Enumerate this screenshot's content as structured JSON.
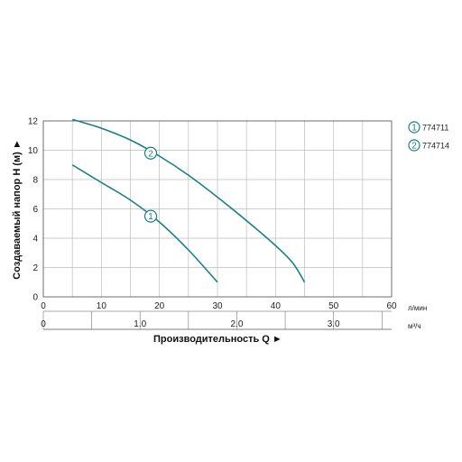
{
  "chart_data": {
    "type": "line",
    "xlabel": "Производительность Q ►",
    "ylabel": "Создаваемый напор H (м) ►",
    "x_unit": "л/мин",
    "x2_unit": "м³/ч",
    "xlim": [
      0,
      60
    ],
    "ylim": [
      0,
      12
    ],
    "x_ticks": [
      0,
      10,
      20,
      30,
      40,
      50,
      60
    ],
    "x2_ticks": [
      "0",
      "1.0",
      "2.0",
      "3.0"
    ],
    "x2_tick_values": [
      0,
      1.0,
      2.0,
      3.0
    ],
    "y_ticks": [
      0,
      2,
      4,
      6,
      8,
      10,
      12
    ],
    "grid": true,
    "legend_position": "right",
    "line_color": "#1a7f86",
    "series": [
      {
        "name": "774711",
        "marker": "1",
        "marker_at": [
          18.5,
          5.5
        ],
        "x": [
          5,
          10,
          15,
          20,
          25,
          30
        ],
        "y": [
          9.0,
          7.8,
          6.6,
          5.1,
          3.2,
          1.0
        ]
      },
      {
        "name": "774714",
        "marker": "2",
        "marker_at": [
          18.5,
          9.8
        ],
        "x": [
          5,
          10,
          15,
          20,
          25,
          30,
          35,
          40,
          43,
          45
        ],
        "y": [
          12.1,
          11.5,
          10.7,
          9.6,
          8.3,
          6.8,
          5.2,
          3.5,
          2.3,
          1.0
        ]
      }
    ],
    "legend": [
      {
        "marker": "1",
        "label": "774711"
      },
      {
        "marker": "2",
        "label": "774714"
      }
    ]
  }
}
